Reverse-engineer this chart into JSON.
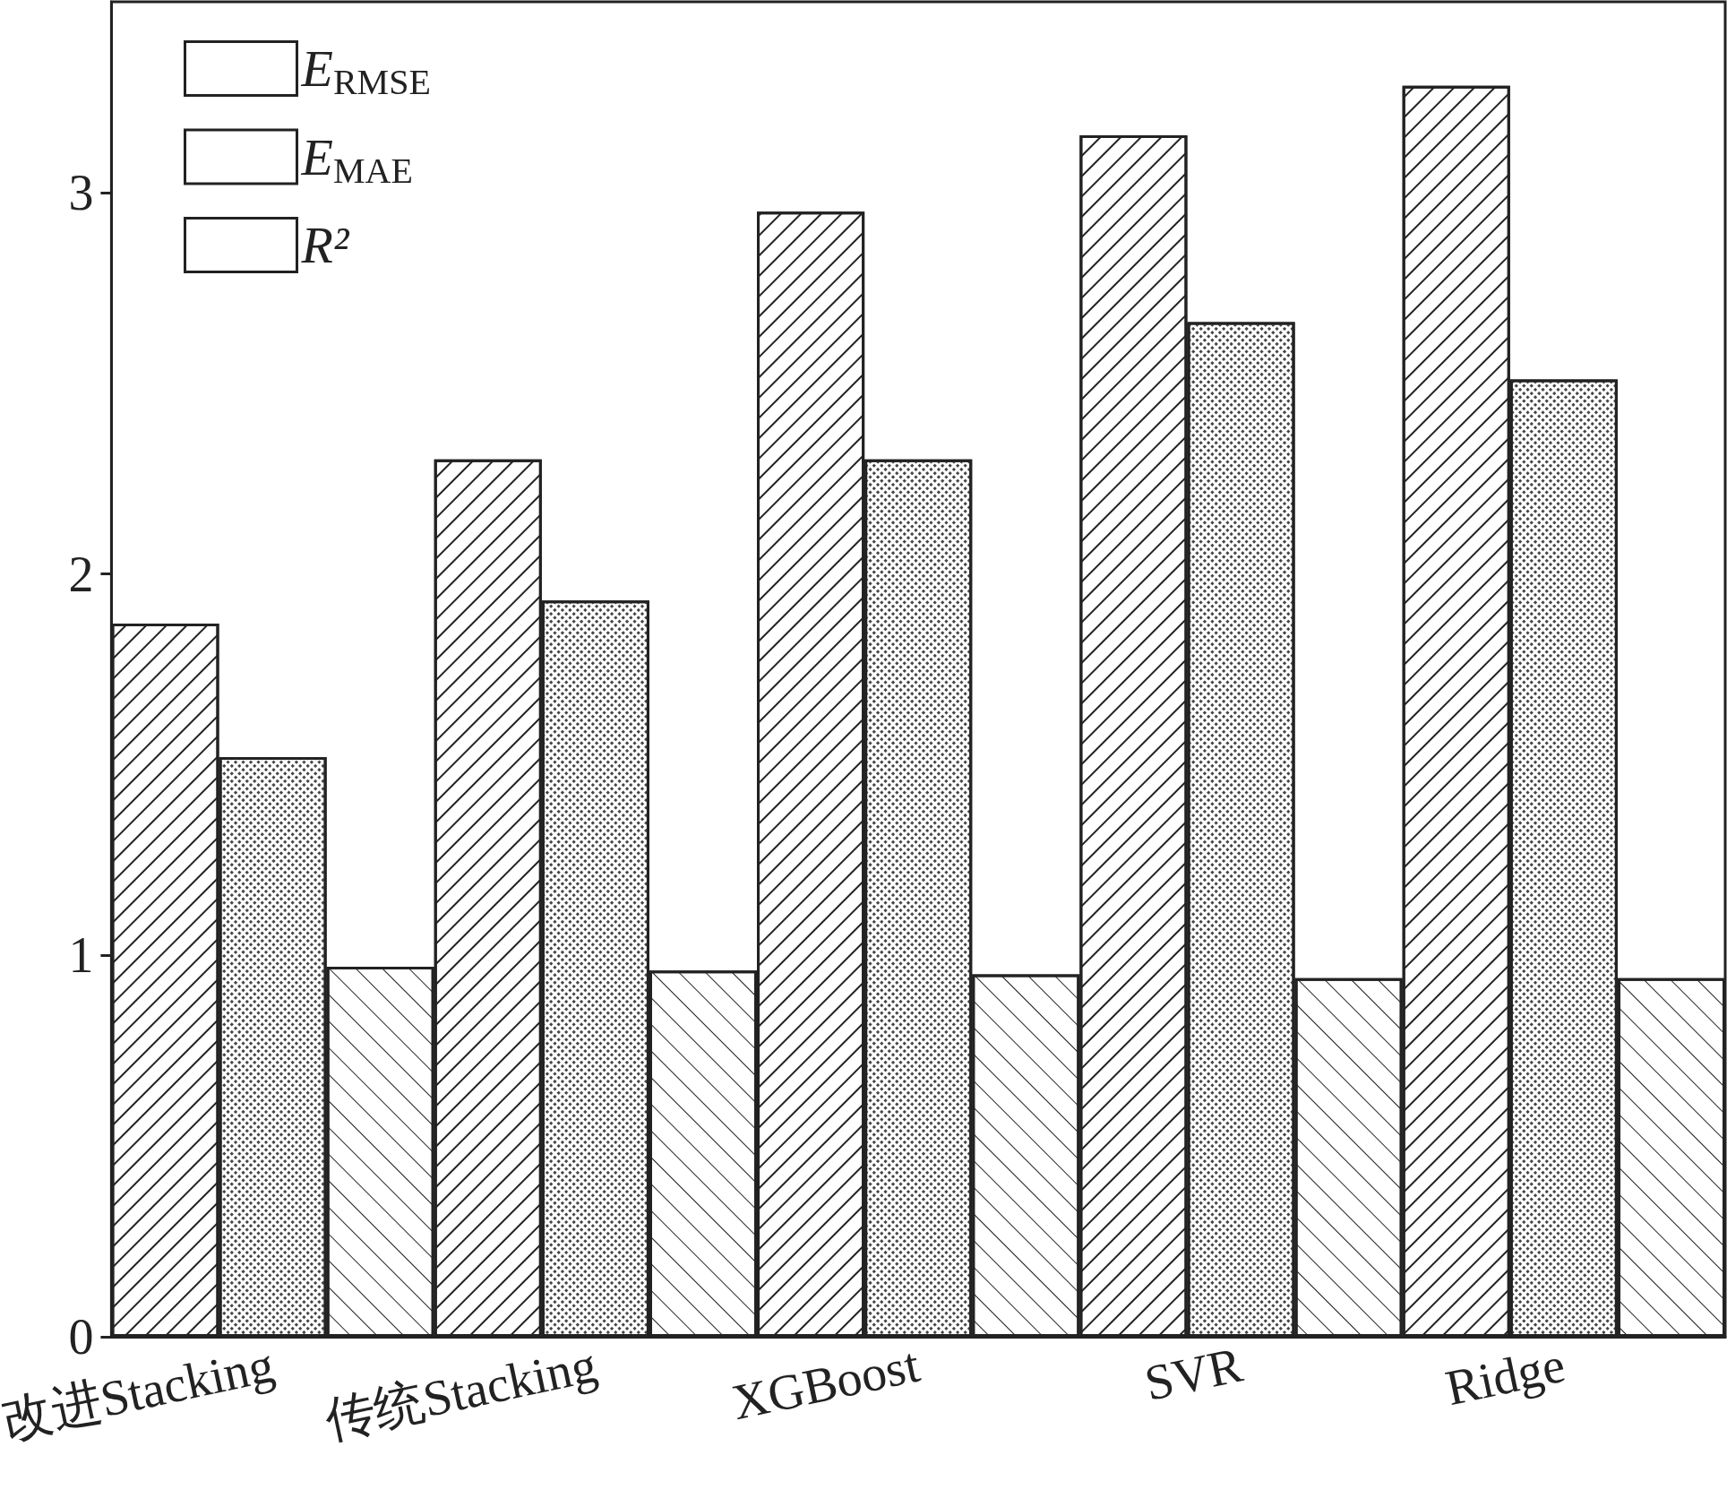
{
  "chart_data": {
    "type": "bar",
    "categories": [
      "改进Stacking",
      "传统Stacking",
      "XGBoost",
      "SVR",
      "Ridge"
    ],
    "series": [
      {
        "name": "E$_{RMSE}$",
        "color": "#ffffff",
        "values": [
          1.87,
          2.3,
          2.95,
          3.15,
          3.28
        ]
      },
      {
        "name": "E$_{MAE}$",
        "color": "#ffffff",
        "values": [
          1.52,
          1.93,
          2.3,
          2.66,
          2.51
        ]
      },
      {
        "name": "R²",
        "color": "#ffffff",
        "values": [
          0.97,
          0.96,
          0.95,
          0.94,
          0.94
        ]
      }
    ],
    "ylim": [
      0,
      3.5
    ],
    "yticks": [
      0,
      1,
      2,
      3
    ],
    "grid": false,
    "legend": "top left"
  }
}
